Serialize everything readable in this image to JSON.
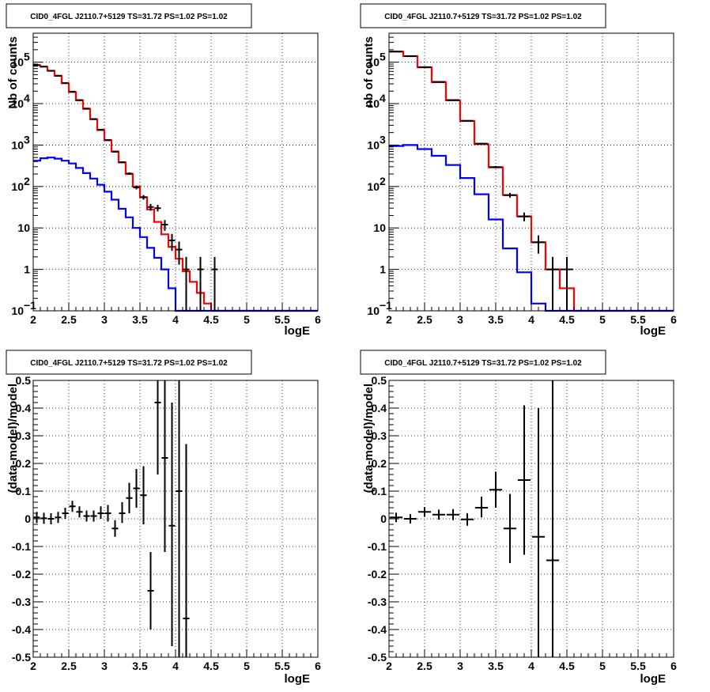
{
  "chart_data": [
    {
      "type": "step",
      "title": "CID0_4FGL J2110.7+5129 TS=31.72 PS=1.02 PS=1.02",
      "xlabel": "logE",
      "ylabel": "Nb of counts",
      "xlim": [
        2,
        6
      ],
      "ylim": [
        0.1,
        500000
      ],
      "log_y": true,
      "grid": true,
      "x_ticks": [
        "2",
        "2.5",
        "3",
        "3.5",
        "4",
        "4.5",
        "5",
        "5.5",
        "6"
      ],
      "y_ticks": [
        {
          "value": 0.1,
          "label": "10",
          "exp": "−1"
        },
        {
          "value": 1,
          "label": "1",
          "exp": ""
        },
        {
          "value": 10,
          "label": "10",
          "exp": ""
        },
        {
          "value": 100,
          "label": "10",
          "exp": "2"
        },
        {
          "value": 1000,
          "label": "10",
          "exp": "3"
        },
        {
          "value": 10000,
          "label": "10",
          "exp": "4"
        },
        {
          "value": 100000,
          "label": "10",
          "exp": "5"
        }
      ],
      "bin_edges": [
        2.0,
        2.1,
        2.2,
        2.3,
        2.4,
        2.5,
        2.6,
        2.7,
        2.8,
        2.9,
        3.0,
        3.1,
        3.2,
        3.3,
        3.4,
        3.5,
        3.6,
        3.7,
        3.8,
        3.9,
        4.0,
        4.1,
        4.2,
        4.3,
        4.4,
        4.5,
        4.6,
        4.7,
        4.8,
        4.9,
        5.0,
        5.1,
        5.2,
        5.3,
        5.4,
        5.5,
        5.6,
        5.7,
        5.8,
        5.9,
        6.0
      ],
      "series": [
        {
          "color": "#ff0000",
          "values": [
            85000,
            78000,
            62000,
            47000,
            31000,
            19000,
            12000,
            7500,
            4200,
            2300,
            1300,
            700,
            380,
            200,
            100,
            55,
            28,
            14,
            7,
            3.5,
            1.8,
            0.9,
            0.5,
            0.27,
            0.15,
            0.1,
            0.1,
            0.1,
            0.1,
            0.1,
            0.1,
            0.1,
            0.1,
            0.1,
            0.1,
            0.1,
            0.1,
            0.1,
            0.1,
            0.1
          ]
        },
        {
          "color": "#0000ff",
          "values": [
            420,
            480,
            500,
            470,
            420,
            360,
            280,
            210,
            155,
            110,
            75,
            48,
            29,
            18,
            10,
            6,
            3.3,
            1.9,
            1.0,
            0.35,
            0.1,
            0.1,
            0.1,
            0.1,
            0.1,
            0.1,
            0.1,
            0.1,
            0.1,
            0.1,
            0.1,
            0.1,
            0.1,
            0.1,
            0.1,
            0.1,
            0.1,
            0.1,
            0.1,
            0.1
          ]
        }
      ],
      "points": [
        {
          "x": 2.05,
          "y": 85000,
          "lo": 84500,
          "hi": 85500
        },
        {
          "x": 2.15,
          "y": 78000,
          "lo": 77500,
          "hi": 78500
        },
        {
          "x": 2.25,
          "y": 62000,
          "lo": 61500,
          "hi": 62500
        },
        {
          "x": 2.35,
          "y": 47000,
          "lo": 46500,
          "hi": 47500
        },
        {
          "x": 2.45,
          "y": 31500,
          "lo": 31000,
          "hi": 32000
        },
        {
          "x": 2.55,
          "y": 19500,
          "lo": 19200,
          "hi": 19800
        },
        {
          "x": 2.65,
          "y": 12200,
          "lo": 12000,
          "hi": 12400
        },
        {
          "x": 2.75,
          "y": 7600,
          "lo": 7450,
          "hi": 7750
        },
        {
          "x": 2.85,
          "y": 4250,
          "lo": 4150,
          "hi": 4350
        },
        {
          "x": 2.95,
          "y": 2350,
          "lo": 2300,
          "hi": 2400
        },
        {
          "x": 3.05,
          "y": 1330,
          "lo": 1290,
          "hi": 1370
        },
        {
          "x": 3.15,
          "y": 690,
          "lo": 665,
          "hi": 715
        },
        {
          "x": 3.25,
          "y": 385,
          "lo": 365,
          "hi": 405
        },
        {
          "x": 3.35,
          "y": 205,
          "lo": 191,
          "hi": 219
        },
        {
          "x": 3.45,
          "y": 95,
          "lo": 85,
          "hi": 105
        },
        {
          "x": 3.55,
          "y": 55,
          "lo": 48,
          "hi": 62
        },
        {
          "x": 3.65,
          "y": 32,
          "lo": 26,
          "hi": 38
        },
        {
          "x": 3.75,
          "y": 30,
          "lo": 25,
          "hi": 36
        },
        {
          "x": 3.85,
          "y": 12,
          "lo": 8.5,
          "hi": 15.5
        },
        {
          "x": 3.95,
          "y": 5,
          "lo": 2.8,
          "hi": 7.2
        },
        {
          "x": 4.05,
          "y": 3,
          "lo": 1.3,
          "hi": 4.7
        },
        {
          "x": 4.15,
          "y": 1,
          "lo": 0.1,
          "hi": 2
        },
        {
          "x": 4.35,
          "y": 1,
          "lo": 0.1,
          "hi": 2
        },
        {
          "x": 4.55,
          "y": 1,
          "lo": 0.1,
          "hi": 2
        }
      ]
    },
    {
      "type": "step",
      "title": "CID0_4FGL J2110.7+5129 TS=31.72 PS=1.02 PS=1.02",
      "xlabel": "logE",
      "ylabel": "nb of counts",
      "xlim": [
        2,
        6
      ],
      "ylim": [
        0.1,
        500000
      ],
      "log_y": true,
      "grid": true,
      "x_ticks": [
        "2",
        "2.5",
        "3",
        "3.5",
        "4",
        "4.5",
        "5",
        "5.5",
        "6"
      ],
      "y_ticks": [
        {
          "value": 0.1,
          "label": "10",
          "exp": "−1"
        },
        {
          "value": 1,
          "label": "1",
          "exp": ""
        },
        {
          "value": 10,
          "label": "10",
          "exp": ""
        },
        {
          "value": 100,
          "label": "10",
          "exp": "2"
        },
        {
          "value": 1000,
          "label": "10",
          "exp": "3"
        },
        {
          "value": 10000,
          "label": "10",
          "exp": "4"
        },
        {
          "value": 100000,
          "label": "10",
          "exp": "5"
        }
      ],
      "bin_edges": [
        2.0,
        2.2,
        2.4,
        2.6,
        2.8,
        3.0,
        3.2,
        3.4,
        3.6,
        3.8,
        4.0,
        4.2,
        4.4,
        4.6,
        4.8,
        5.0,
        5.2,
        5.4,
        5.6,
        5.8,
        6.0
      ],
      "series": [
        {
          "color": "#ff0000",
          "values": [
            180000,
            140000,
            75000,
            33000,
            12000,
            3800,
            1050,
            290,
            62,
            19,
            4.5,
            1.0,
            0.35,
            0.1,
            0.1,
            0.1,
            0.1,
            0.1,
            0.1,
            0.1
          ]
        },
        {
          "color": "#0000ff",
          "values": [
            950,
            1000,
            800,
            550,
            330,
            160,
            65,
            16,
            3.2,
            0.85,
            0.15,
            0.1,
            0.1,
            0.1,
            0.1,
            0.1,
            0.1,
            0.1,
            0.1,
            0.1
          ]
        }
      ],
      "points": [
        {
          "x": 2.1,
          "y": 180000,
          "lo": 179000,
          "hi": 181000
        },
        {
          "x": 2.3,
          "y": 140000,
          "lo": 139000,
          "hi": 141000
        },
        {
          "x": 2.5,
          "y": 76000,
          "lo": 75500,
          "hi": 76500
        },
        {
          "x": 2.7,
          "y": 33500,
          "lo": 33200,
          "hi": 33800
        },
        {
          "x": 2.9,
          "y": 12200,
          "lo": 12000,
          "hi": 12400
        },
        {
          "x": 3.1,
          "y": 3850,
          "lo": 3780,
          "hi": 3920
        },
        {
          "x": 3.3,
          "y": 1080,
          "lo": 1040,
          "hi": 1120
        },
        {
          "x": 3.5,
          "y": 295,
          "lo": 278,
          "hi": 312
        },
        {
          "x": 3.7,
          "y": 62,
          "lo": 54,
          "hi": 70
        },
        {
          "x": 3.9,
          "y": 19,
          "lo": 14.5,
          "hi": 23.5
        },
        {
          "x": 4.1,
          "y": 4.5,
          "lo": 2.4,
          "hi": 6.6
        },
        {
          "x": 4.3,
          "y": 1,
          "lo": 0.1,
          "hi": 2
        },
        {
          "x": 4.5,
          "y": 1,
          "lo": 0.1,
          "hi": 2
        }
      ]
    },
    {
      "type": "scatter",
      "title": "CID0_4FGL J2110.7+5129 TS=31.72 PS=1.02 PS=1.02",
      "xlabel": "logE",
      "ylabel": "(data-model)/model",
      "xlim": [
        2,
        6
      ],
      "ylim": [
        -0.5,
        0.5
      ],
      "grid": true,
      "x_ticks": [
        "2",
        "2.5",
        "3",
        "3.5",
        "4",
        "4.5",
        "5",
        "5.5",
        "6"
      ],
      "y_ticks": [
        "-0.5",
        "-0.4",
        "-0.3",
        "-0.2",
        "-0.1",
        "0",
        "0.1",
        "0.2",
        "0.3",
        "0.4",
        "0.5"
      ],
      "bin_width": 0.1,
      "points": [
        {
          "x": 2.05,
          "y": 0.005,
          "lo": -0.015,
          "hi": 0.025
        },
        {
          "x": 2.15,
          "y": 0.002,
          "lo": -0.018,
          "hi": 0.022
        },
        {
          "x": 2.25,
          "y": 0.0,
          "lo": -0.02,
          "hi": 0.02
        },
        {
          "x": 2.35,
          "y": 0.005,
          "lo": -0.015,
          "hi": 0.025
        },
        {
          "x": 2.45,
          "y": 0.02,
          "lo": 0.0,
          "hi": 0.04
        },
        {
          "x": 2.55,
          "y": 0.045,
          "lo": 0.025,
          "hi": 0.065
        },
        {
          "x": 2.65,
          "y": 0.025,
          "lo": 0.005,
          "hi": 0.045
        },
        {
          "x": 2.75,
          "y": 0.01,
          "lo": -0.01,
          "hi": 0.03
        },
        {
          "x": 2.85,
          "y": 0.01,
          "lo": -0.01,
          "hi": 0.03
        },
        {
          "x": 2.95,
          "y": 0.02,
          "lo": 0.0,
          "hi": 0.045
        },
        {
          "x": 3.05,
          "y": 0.02,
          "lo": -0.01,
          "hi": 0.05
        },
        {
          "x": 3.15,
          "y": -0.035,
          "lo": -0.065,
          "hi": -0.005
        },
        {
          "x": 3.25,
          "y": 0.02,
          "lo": -0.015,
          "hi": 0.06
        },
        {
          "x": 3.35,
          "y": 0.075,
          "lo": 0.02,
          "hi": 0.13
        },
        {
          "x": 3.45,
          "y": 0.11,
          "lo": 0.04,
          "hi": 0.18
        },
        {
          "x": 3.55,
          "y": 0.085,
          "lo": -0.02,
          "hi": 0.19
        },
        {
          "x": 3.65,
          "y": -0.26,
          "lo": -0.4,
          "hi": -0.12
        },
        {
          "x": 3.75,
          "y": 0.42,
          "lo": 0.16,
          "hi": 0.6
        },
        {
          "x": 3.85,
          "y": 0.22,
          "lo": -0.12,
          "hi": 0.52
        },
        {
          "x": 3.95,
          "y": -0.025,
          "lo": -0.46,
          "hi": 0.42
        },
        {
          "x": 4.05,
          "y": 0.1,
          "lo": -0.5,
          "hi": 0.6
        },
        {
          "x": 4.15,
          "y": -0.36,
          "lo": -0.5,
          "hi": 0.27
        }
      ]
    },
    {
      "type": "scatter",
      "title": "CID0_4FGL J2110.7+5129 TS=31.72 PS=1.02 PS=1.02",
      "xlabel": "logE",
      "ylabel": "(data-model)/model",
      "xlim": [
        2,
        6
      ],
      "ylim": [
        -0.5,
        0.5
      ],
      "grid": true,
      "x_ticks": [
        "2",
        "2.5",
        "3",
        "3.5",
        "4",
        "4.5",
        "5",
        "5.5",
        "6"
      ],
      "y_ticks": [
        "-0.5",
        "-0.4",
        "-0.3",
        "-0.2",
        "-0.1",
        "0",
        "0.1",
        "0.2",
        "0.3",
        "0.4",
        "0.5"
      ],
      "bin_width": 0.2,
      "points": [
        {
          "x": 2.1,
          "y": 0.005,
          "lo": -0.012,
          "hi": 0.022
        },
        {
          "x": 2.3,
          "y": 0.0,
          "lo": -0.017,
          "hi": 0.017
        },
        {
          "x": 2.5,
          "y": 0.025,
          "lo": 0.008,
          "hi": 0.042
        },
        {
          "x": 2.7,
          "y": 0.015,
          "lo": -0.003,
          "hi": 0.033
        },
        {
          "x": 2.9,
          "y": 0.015,
          "lo": -0.005,
          "hi": 0.035
        },
        {
          "x": 3.1,
          "y": -0.002,
          "lo": -0.025,
          "hi": 0.02
        },
        {
          "x": 3.3,
          "y": 0.04,
          "lo": 0.005,
          "hi": 0.08
        },
        {
          "x": 3.5,
          "y": 0.105,
          "lo": 0.04,
          "hi": 0.17
        },
        {
          "x": 3.7,
          "y": -0.035,
          "lo": -0.16,
          "hi": 0.09
        },
        {
          "x": 3.9,
          "y": 0.14,
          "lo": -0.13,
          "hi": 0.41
        },
        {
          "x": 4.1,
          "y": -0.065,
          "lo": -0.55,
          "hi": 0.4
        },
        {
          "x": 4.3,
          "y": -0.15,
          "lo": -0.6,
          "hi": 0.6
        }
      ]
    }
  ]
}
